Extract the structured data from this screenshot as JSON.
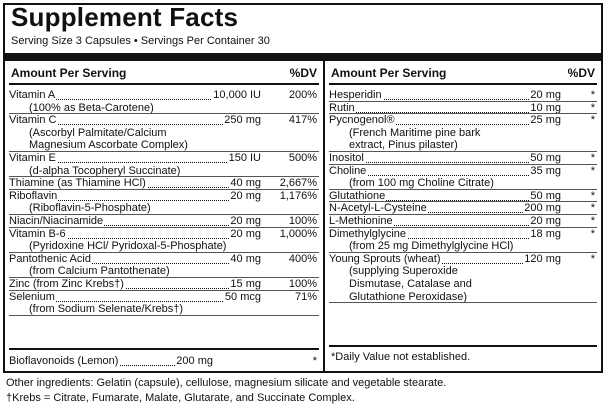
{
  "title": "Supplement Facts",
  "serving_line": "Serving Size 3 Capsules • Servings Per Container 30",
  "left": {
    "header_amount": "Amount Per Serving",
    "header_dv": "%DV",
    "rows": [
      {
        "name": "Vitamin A",
        "amount": "10,000 IU",
        "dv": "200%",
        "sub": [
          "(100% as Beta-Carotene)"
        ]
      },
      {
        "name": "Vitamin C",
        "amount": "250 mg",
        "dv": "417%",
        "sub": [
          "(Ascorbyl Palmitate/Calcium",
          "Magnesium Ascorbate Complex)"
        ]
      },
      {
        "name": "Vitamin E",
        "amount": "150 IU",
        "dv": "500%",
        "sub": [
          "(d-alpha Tocopheryl Succinate)"
        ]
      },
      {
        "name": "Thiamine (as Thiamine HCl)",
        "amount": "40 mg",
        "dv": "2,667%",
        "sub": []
      },
      {
        "name": "Riboflavin",
        "amount": "20 mg",
        "dv": "1,176%",
        "sub": [
          "(Riboflavin-5-Phosphate)"
        ]
      },
      {
        "name": "Niacin/Niacinamide",
        "amount": "20 mg",
        "dv": "100%",
        "sub": []
      },
      {
        "name": "Vitamin B-6",
        "amount": "20 mg",
        "dv": "1,000%",
        "sub": [
          "(Pyridoxine HCl/ Pyridoxal-5-Phosphate)"
        ]
      },
      {
        "name": "Pantothenic Acid",
        "amount": "40 mg",
        "dv": "400%",
        "sub": [
          "(from Calcium Pantothenate)"
        ]
      },
      {
        "name": "Zinc (from Zinc Krebs†)",
        "amount": "15 mg",
        "dv": "100%",
        "sub": []
      },
      {
        "name": "Selenium",
        "amount": "50 mcg",
        "dv": "71%",
        "sub": [
          "(from Sodium Selenate/Krebs†)"
        ]
      }
    ],
    "bioflavonoids": {
      "name": "Bioflavonoids (Lemon)",
      "amount": "200 mg",
      "dv": "*"
    }
  },
  "right": {
    "header_amount": "Amount Per Serving",
    "header_dv": "%DV",
    "rows": [
      {
        "name": "Hesperidin",
        "amount": "20 mg",
        "dv": "*",
        "sub": []
      },
      {
        "name": "Rutin",
        "amount": "10 mg",
        "dv": "*",
        "sub": []
      },
      {
        "name": "Pycnogenol®",
        "amount": "25 mg",
        "dv": "*",
        "sub": [
          "(French Maritime pine bark",
          "extract, Pinus pilaster)"
        ]
      },
      {
        "name": "Inositol",
        "amount": "50 mg",
        "dv": "*",
        "sub": []
      },
      {
        "name": "Choline",
        "amount": "35 mg",
        "dv": "*",
        "sub": [
          "(from 100 mg Choline Citrate)"
        ]
      },
      {
        "name": "Glutathione",
        "amount": "50 mg",
        "dv": "*",
        "sub": []
      },
      {
        "name": "N-Acetyl-L-Cysteine",
        "amount": "200 mg",
        "dv": "*",
        "sub": []
      },
      {
        "name": "L-Methionine",
        "amount": "20 mg",
        "dv": "*",
        "sub": []
      },
      {
        "name": "Dimethylglycine",
        "amount": "18 mg",
        "dv": "*",
        "sub": [
          "(from 25 mg Dimethylglycine HCl)"
        ]
      },
      {
        "name": "Young Sprouts (wheat)",
        "amount": "120 mg",
        "dv": "*",
        "sub": [
          "(supplying Superoxide",
          "Dismutase, Catalase and",
          "Glutathione Peroxidase)"
        ]
      }
    ],
    "footnote": "*Daily Value not established."
  },
  "other_ingredients": "Other ingredients: Gelatin (capsule), cellulose, magnesium silicate and vegetable stearate.",
  "krebs_note": "†Krebs = Citrate, Fumarate, Malate, Glutarate, and Succinate Complex."
}
